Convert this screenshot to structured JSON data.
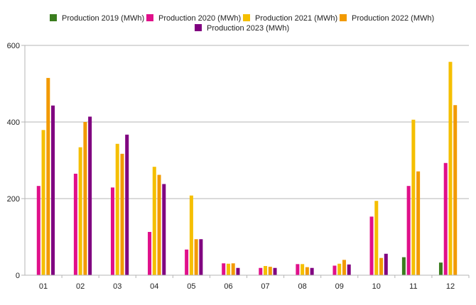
{
  "chart_data": {
    "type": "bar",
    "title": "",
    "xlabel": "",
    "ylabel": "",
    "categories": [
      "01",
      "02",
      "03",
      "04",
      "05",
      "06",
      "07",
      "08",
      "09",
      "10",
      "11",
      "12"
    ],
    "ylim": [
      0,
      600
    ],
    "yticks": [
      0,
      200,
      400,
      600
    ],
    "grid": true,
    "legend_position": "top-center",
    "series": [
      {
        "name": "Production 2019 (MWh)",
        "color": "#3a7d1e",
        "values": [
          null,
          null,
          null,
          null,
          null,
          null,
          null,
          null,
          null,
          null,
          47,
          33
        ]
      },
      {
        "name": "Production 2020 (MWh)",
        "color": "#e0108a",
        "values": [
          233,
          265,
          229,
          113,
          67,
          31,
          19,
          29,
          25,
          153,
          233,
          293
        ]
      },
      {
        "name": "Production 2021 (MWh)",
        "color": "#f5bf00",
        "values": [
          379,
          334,
          343,
          283,
          208,
          30,
          24,
          29,
          30,
          194,
          406,
          557
        ]
      },
      {
        "name": "Production 2022 (MWh)",
        "color": "#f29a00",
        "values": [
          515,
          400,
          317,
          262,
          94,
          31,
          22,
          21,
          40,
          45,
          271,
          444
        ]
      },
      {
        "name": "Production 2023 (MWh)",
        "color": "#800080",
        "values": [
          443,
          414,
          367,
          238,
          94,
          19,
          19,
          19,
          28,
          56,
          null,
          null
        ]
      }
    ]
  }
}
